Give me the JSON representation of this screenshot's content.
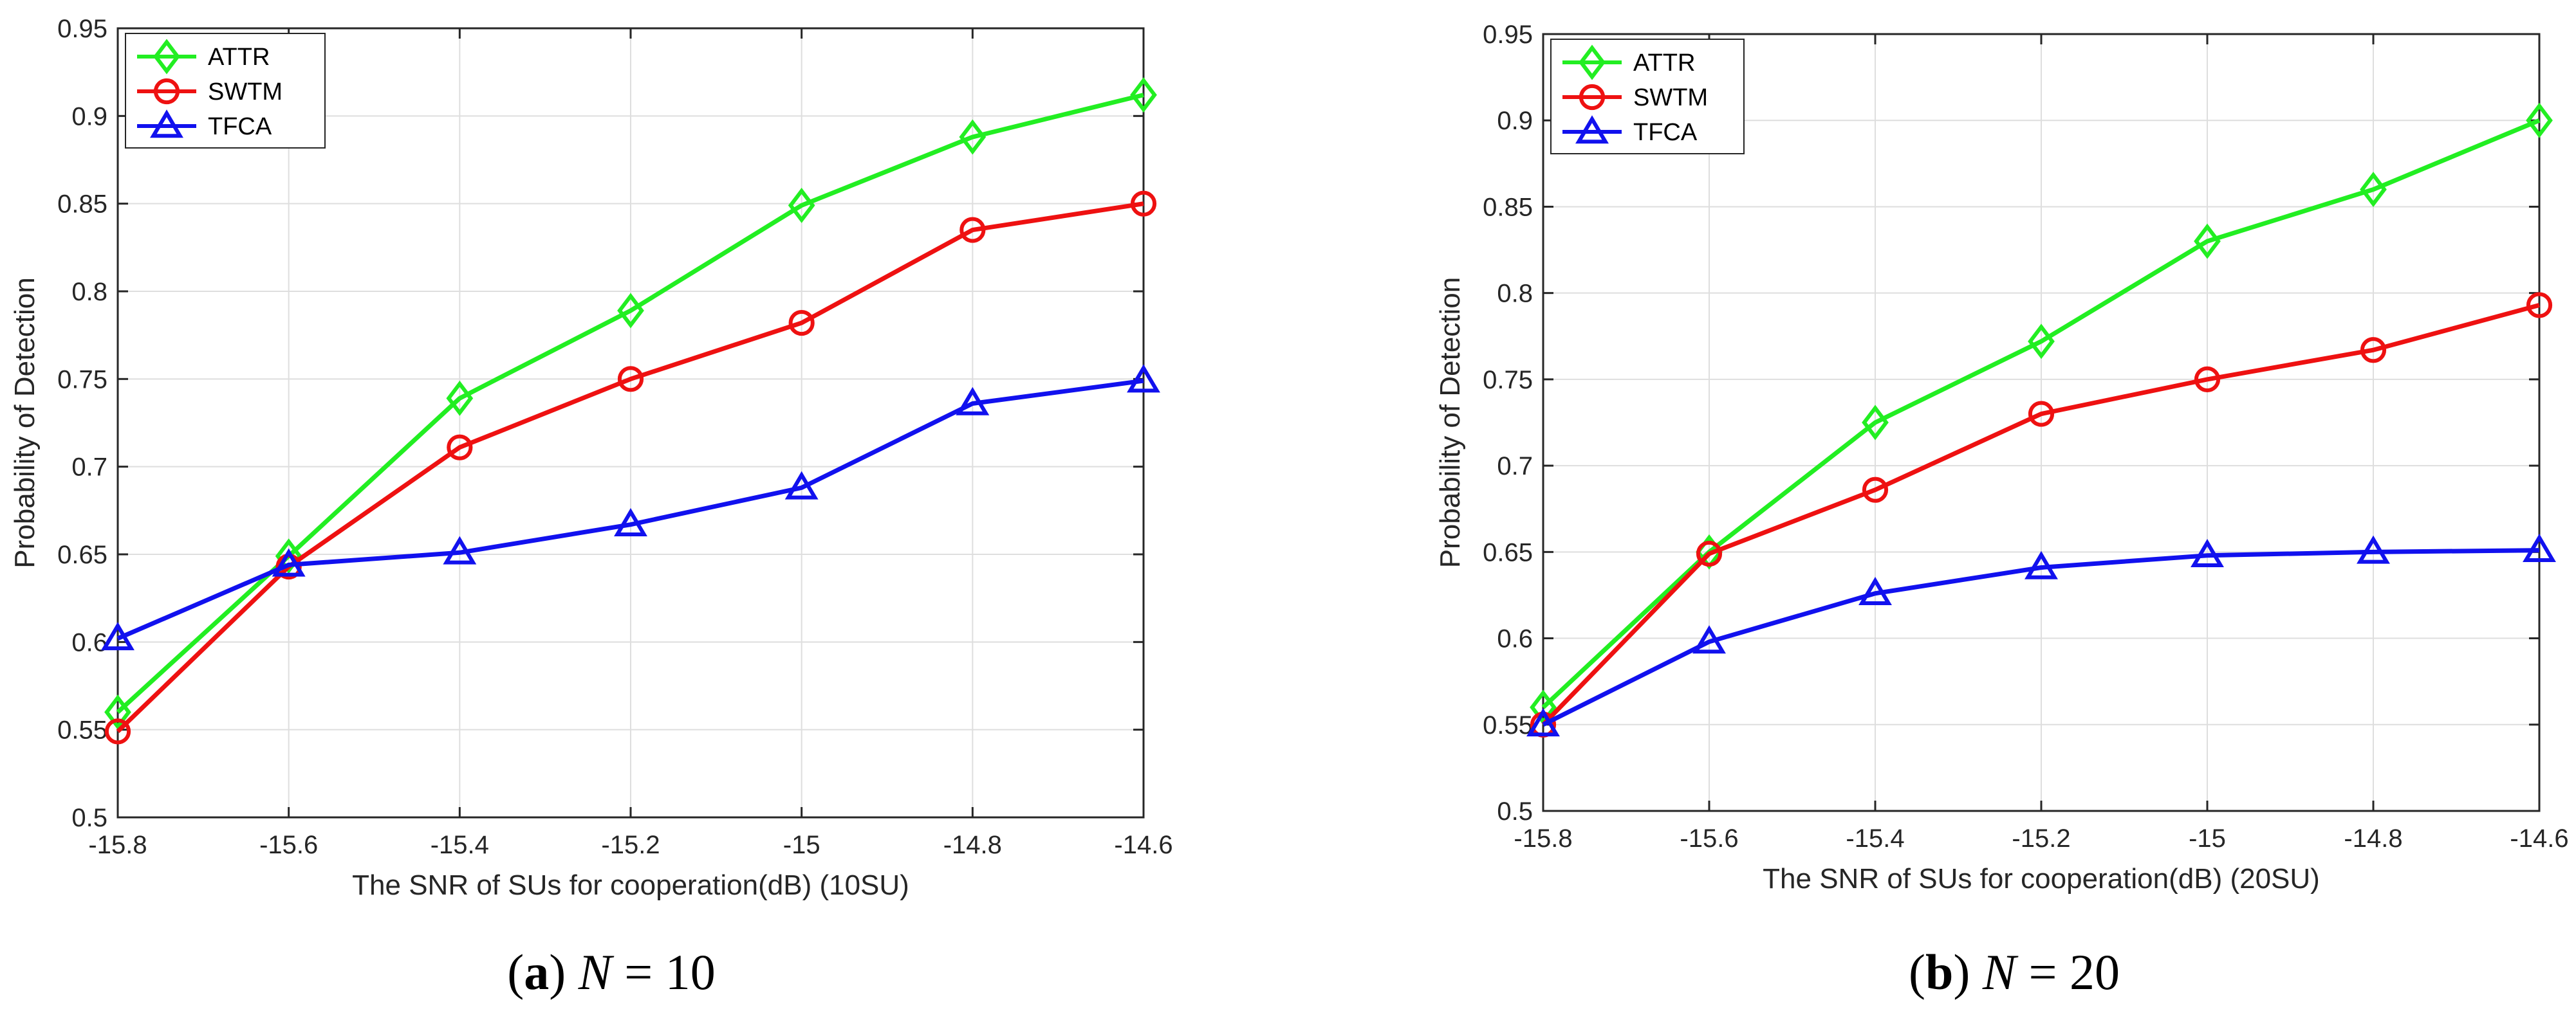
{
  "chart_data": [
    {
      "type": "line",
      "panel": "a",
      "caption": {
        "letter": "a",
        "variable": "N",
        "equals": " = ",
        "value": "10"
      },
      "xlabel": "The SNR of SUs for cooperation(dB) (10SU)",
      "ylabel": "Probability of Detection",
      "xlim": [
        -15.8,
        -14.6
      ],
      "ylim": [
        0.5,
        0.95
      ],
      "grid": true,
      "legend_position": "top-left",
      "x": [
        -15.8,
        -15.6,
        -15.4,
        -15.2,
        -15.0,
        -14.8,
        -14.6
      ],
      "xticks": [
        -15.8,
        -15.6,
        -15.4,
        -15.2,
        -15.0,
        -14.8,
        -14.6
      ],
      "xtick_labels": [
        "-15.8",
        "-15.6",
        "-15.4",
        "-15.2",
        "-15",
        "-14.8",
        "-14.6"
      ],
      "yticks": [
        0.5,
        0.55,
        0.6,
        0.65,
        0.7,
        0.75,
        0.8,
        0.85,
        0.9,
        0.95
      ],
      "ytick_labels": [
        "0.5",
        "0.55",
        "0.6",
        "0.65",
        "0.7",
        "0.75",
        "0.8",
        "0.85",
        "0.9",
        "0.95"
      ],
      "series": [
        {
          "name": "ATTR",
          "color": "#22ee22",
          "marker": "diamond",
          "values": [
            0.56,
            0.649,
            0.739,
            0.789,
            0.849,
            0.888,
            0.912
          ]
        },
        {
          "name": "SWTM",
          "color": "#ee1111",
          "marker": "circle",
          "values": [
            0.549,
            0.643,
            0.711,
            0.75,
            0.782,
            0.835,
            0.85
          ]
        },
        {
          "name": "TFCA",
          "color": "#1111ee",
          "marker": "triangle",
          "values": [
            0.602,
            0.644,
            0.651,
            0.667,
            0.688,
            0.736,
            0.749
          ]
        }
      ]
    },
    {
      "type": "line",
      "panel": "b",
      "caption": {
        "letter": "b",
        "variable": "N",
        "equals": " = ",
        "value": "20"
      },
      "xlabel": "The SNR of SUs for cooperation(dB) (20SU)",
      "ylabel": "Probability of Detection",
      "xlim": [
        -15.8,
        -14.6
      ],
      "ylim": [
        0.5,
        0.95
      ],
      "grid": true,
      "legend_position": "top-left",
      "x": [
        -15.8,
        -15.6,
        -15.4,
        -15.2,
        -15.0,
        -14.8,
        -14.6
      ],
      "xticks": [
        -15.8,
        -15.6,
        -15.4,
        -15.2,
        -15.0,
        -14.8,
        -14.6
      ],
      "xtick_labels": [
        "-15.8",
        "-15.6",
        "-15.4",
        "-15.2",
        "-15",
        "-14.8",
        "-14.6"
      ],
      "yticks": [
        0.5,
        0.55,
        0.6,
        0.65,
        0.7,
        0.75,
        0.8,
        0.85,
        0.9,
        0.95
      ],
      "ytick_labels": [
        "0.5",
        "0.55",
        "0.6",
        "0.65",
        "0.7",
        "0.75",
        "0.8",
        "0.85",
        "0.9",
        "0.95"
      ],
      "series": [
        {
          "name": "ATTR",
          "color": "#22ee22",
          "marker": "diamond",
          "values": [
            0.56,
            0.65,
            0.725,
            0.772,
            0.83,
            0.86,
            0.9
          ]
        },
        {
          "name": "SWTM",
          "color": "#ee1111",
          "marker": "circle",
          "values": [
            0.55,
            0.649,
            0.686,
            0.73,
            0.75,
            0.767,
            0.793
          ]
        },
        {
          "name": "TFCA",
          "color": "#1111ee",
          "marker": "triangle",
          "values": [
            0.55,
            0.598,
            0.626,
            0.641,
            0.648,
            0.65,
            0.651
          ]
        }
      ]
    }
  ]
}
